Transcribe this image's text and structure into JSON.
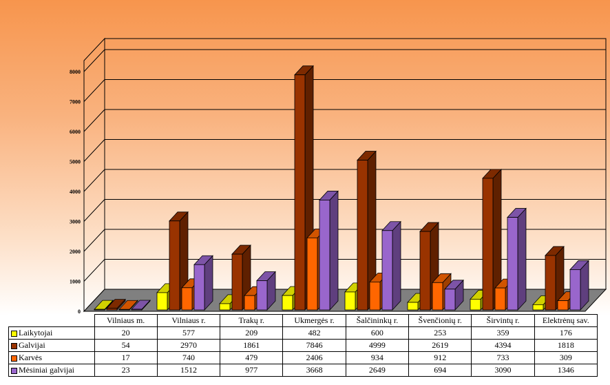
{
  "chart_data": {
    "type": "bar",
    "title": "",
    "xlabel": "",
    "ylabel": "",
    "ylim": [
      0,
      8000
    ],
    "yticks": [
      0,
      1000,
      2000,
      3000,
      4000,
      5000,
      6000,
      7000,
      8000
    ],
    "grid": true,
    "legend": "table-left",
    "categories": [
      "Vilniaus m.",
      "Vilniaus r.",
      "Trakų r.",
      "Ukmergės r.",
      "Šalčininkų r.",
      "Švenčionių r.",
      "Širvintų r.",
      "Elektrėnų sav."
    ],
    "series": [
      {
        "name": "Laikytojai",
        "color": "#ffff00",
        "values": [
          20,
          577,
          209,
          482,
          600,
          253,
          359,
          176
        ]
      },
      {
        "name": "Galvijai",
        "color": "#993300",
        "values": [
          54,
          2970,
          1861,
          7846,
          4999,
          2619,
          4394,
          1818
        ]
      },
      {
        "name": "Karvės",
        "color": "#ff6600",
        "values": [
          17,
          740,
          479,
          2406,
          934,
          912,
          733,
          309
        ]
      },
      {
        "name": "Mėsiniai galvijai",
        "color": "#9966cc",
        "values": [
          23,
          1512,
          977,
          3668,
          2649,
          694,
          3090,
          1346
        ]
      }
    ]
  }
}
